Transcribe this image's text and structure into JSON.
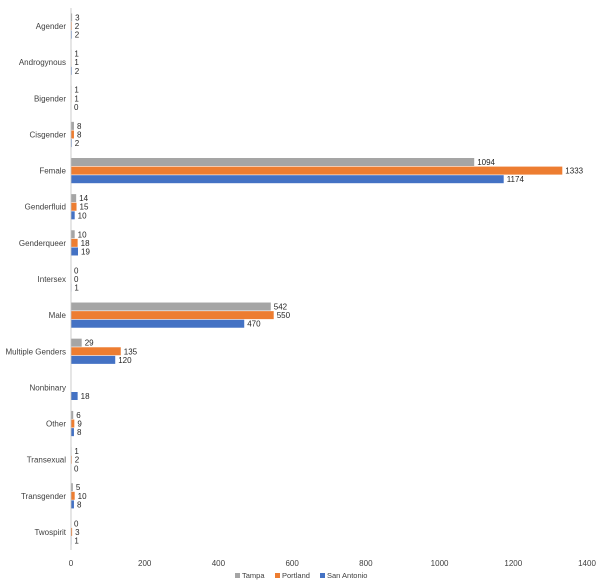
{
  "chart_data": {
    "type": "bar",
    "orientation": "horizontal",
    "categories": [
      "Agender",
      "Androgynous",
      "Bigender",
      "Cisgender",
      "Female",
      "Genderfluid",
      "Genderqueer",
      "Intersex",
      "Male",
      "Multiple Genders",
      "Nonbinary",
      "Other",
      "Transexual",
      "Transgender",
      "Twospirit"
    ],
    "series": [
      {
        "name": "Tampa",
        "color": "#a5a5a5",
        "values": [
          3,
          1,
          1,
          8,
          1094,
          14,
          10,
          0,
          542,
          29,
          null,
          6,
          1,
          5,
          0
        ]
      },
      {
        "name": "Portland",
        "color": "#ed7d31",
        "values": [
          2,
          1,
          1,
          8,
          1333,
          15,
          18,
          0,
          550,
          135,
          null,
          9,
          2,
          10,
          3
        ]
      },
      {
        "name": "San Antonio",
        "color": "#4472c4",
        "values": [
          2,
          2,
          0,
          2,
          1174,
          10,
          19,
          1,
          470,
          120,
          18,
          8,
          0,
          8,
          1
        ]
      }
    ],
    "x_ticks": [
      0,
      200,
      400,
      600,
      800,
      1000,
      1200,
      1400
    ],
    "xlim": [
      0,
      1400
    ],
    "grid": false,
    "legend_position": "bottom"
  }
}
